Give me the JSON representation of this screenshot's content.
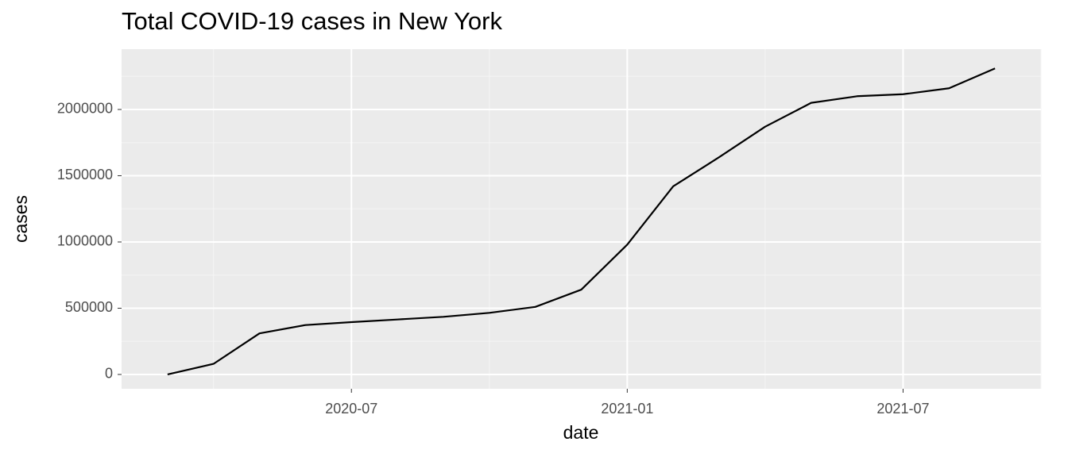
{
  "chart_data": {
    "type": "line",
    "title": "Total COVID-19 cases in New York",
    "x_label": "date",
    "y_label": "cases",
    "x": [
      "2020-03",
      "2020-04",
      "2020-05",
      "2020-06",
      "2020-07",
      "2020-08",
      "2020-09",
      "2020-10",
      "2020-11",
      "2020-12",
      "2021-01",
      "2021-02",
      "2021-03",
      "2021-04",
      "2021-05",
      "2021-06",
      "2021-07",
      "2021-08",
      "2021-09"
    ],
    "series": [
      {
        "name": "cases",
        "color": "#000000",
        "values": [
          0,
          80000,
          310000,
          373000,
          395000,
          415000,
          435000,
          465000,
          510000,
          640000,
          980000,
          1420000,
          1640000,
          1870000,
          2050000,
          2100000,
          2115000,
          2160000,
          2310000
        ]
      }
    ],
    "xlim": [
      "2020-02",
      "2021-10"
    ],
    "xticks": [
      "2020-07",
      "2021-01",
      "2021-07"
    ],
    "ylim": [
      -108000,
      2455000
    ],
    "yticks": [
      0,
      500000,
      1000000,
      1500000,
      2000000
    ],
    "grid": true
  }
}
